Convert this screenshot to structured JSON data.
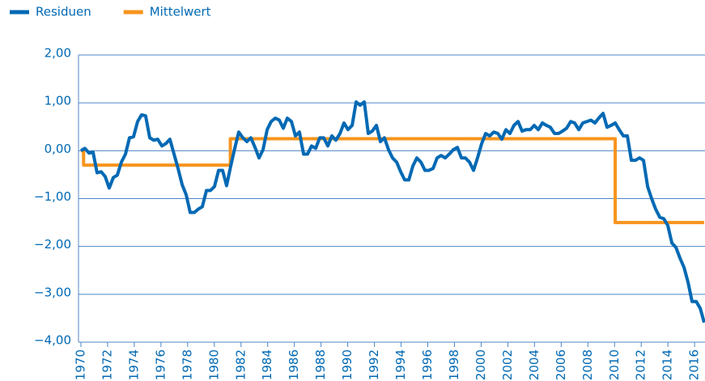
{
  "chart_data": {
    "type": "line",
    "xlim": [
      1969.82,
      2016.78
    ],
    "xticks": [
      1970,
      1972,
      1974,
      1976,
      1978,
      1980,
      1982,
      1984,
      1986,
      1988,
      1990,
      1992,
      1994,
      1996,
      1998,
      2000,
      2002,
      2004,
      2006,
      2008,
      2010,
      2012,
      2014,
      2016
    ],
    "ylim": [
      -4,
      2
    ],
    "yticks": [
      {
        "value": 2,
        "label": "2,00"
      },
      {
        "value": 1,
        "label": "1,00"
      },
      {
        "value": 0,
        "label": "0,00"
      },
      {
        "value": -1,
        "label": "−1,00"
      },
      {
        "value": -2,
        "label": "−2,00"
      },
      {
        "value": -3,
        "label": "−3,00"
      },
      {
        "value": -4,
        "label": "−4,00"
      }
    ],
    "grid": true,
    "legend": "top-left",
    "series": [
      {
        "name": "Residuen",
        "color": "#0069b4",
        "x": [
          1970.0,
          1970.3,
          1970.61,
          1970.91,
          1971.21,
          1971.52,
          1971.82,
          1972.12,
          1972.43,
          1972.73,
          1973.03,
          1973.34,
          1973.64,
          1973.94,
          1974.25,
          1974.55,
          1974.85,
          1975.16,
          1975.46,
          1975.76,
          1976.07,
          1976.37,
          1976.67,
          1976.98,
          1977.28,
          1977.59,
          1977.89,
          1978.19,
          1978.5,
          1978.8,
          1979.1,
          1979.41,
          1979.71,
          1980.01,
          1980.32,
          1980.62,
          1980.92,
          1981.23,
          1981.53,
          1981.83,
          1982.14,
          1982.44,
          1982.74,
          1983.05,
          1983.35,
          1983.65,
          1983.96,
          1984.26,
          1984.56,
          1984.87,
          1985.17,
          1985.47,
          1985.78,
          1986.08,
          1986.38,
          1986.69,
          1986.99,
          1987.29,
          1987.6,
          1987.9,
          1988.2,
          1988.51,
          1988.81,
          1989.11,
          1989.42,
          1989.72,
          1990.02,
          1990.33,
          1990.63,
          1990.93,
          1991.24,
          1991.54,
          1991.84,
          1992.15,
          1992.45,
          1992.75,
          1993.06,
          1993.36,
          1993.67,
          1993.97,
          1994.27,
          1994.58,
          1994.88,
          1995.18,
          1995.49,
          1995.79,
          1996.09,
          1996.4,
          1996.7,
          1997.0,
          1997.31,
          1997.61,
          1997.91,
          1998.22,
          1998.52,
          1998.82,
          1999.13,
          1999.43,
          1999.73,
          2000.04,
          2000.34,
          2000.64,
          2000.95,
          2001.25,
          2001.55,
          2001.86,
          2002.16,
          2002.46,
          2002.77,
          2003.07,
          2003.37,
          2003.68,
          2003.98,
          2004.28,
          2004.59,
          2004.89,
          2005.19,
          2005.5,
          2005.8,
          2006.1,
          2006.41,
          2006.71,
          2007.01,
          2007.32,
          2007.62,
          2007.93,
          2008.23,
          2008.53,
          2008.84,
          2009.14,
          2009.44,
          2009.75,
          2010.05,
          2010.35,
          2010.66,
          2010.96,
          2011.26,
          2011.57,
          2011.87,
          2012.17,
          2012.48,
          2012.78,
          2013.08,
          2013.39,
          2013.69,
          2013.99,
          2014.3,
          2014.6,
          2014.9,
          2015.21,
          2015.51,
          2015.81,
          2016.12,
          2016.42,
          2016.72
        ],
        "values": [
          0.0,
          0.05,
          -0.05,
          -0.03,
          -0.46,
          -0.44,
          -0.54,
          -0.78,
          -0.56,
          -0.51,
          -0.24,
          -0.07,
          0.27,
          0.29,
          0.61,
          0.75,
          0.73,
          0.27,
          0.22,
          0.24,
          0.1,
          0.15,
          0.24,
          -0.07,
          -0.37,
          -0.71,
          -0.92,
          -1.29,
          -1.29,
          -1.22,
          -1.17,
          -0.83,
          -0.83,
          -0.75,
          -0.41,
          -0.41,
          -0.73,
          -0.32,
          0.05,
          0.39,
          0.27,
          0.19,
          0.27,
          0.07,
          -0.15,
          0.02,
          0.44,
          0.61,
          0.68,
          0.64,
          0.47,
          0.68,
          0.61,
          0.31,
          0.39,
          -0.07,
          -0.07,
          0.1,
          0.05,
          0.27,
          0.27,
          0.1,
          0.31,
          0.22,
          0.36,
          0.58,
          0.44,
          0.53,
          1.02,
          0.95,
          1.02,
          0.36,
          0.41,
          0.53,
          0.19,
          0.27,
          0.02,
          -0.15,
          -0.24,
          -0.44,
          -0.61,
          -0.61,
          -0.32,
          -0.15,
          -0.24,
          -0.41,
          -0.41,
          -0.37,
          -0.15,
          -0.1,
          -0.15,
          -0.07,
          0.02,
          0.07,
          -0.15,
          -0.15,
          -0.24,
          -0.41,
          -0.15,
          0.15,
          0.36,
          0.31,
          0.39,
          0.36,
          0.24,
          0.44,
          0.36,
          0.53,
          0.61,
          0.41,
          0.44,
          0.44,
          0.53,
          0.44,
          0.58,
          0.53,
          0.49,
          0.36,
          0.36,
          0.41,
          0.47,
          0.61,
          0.58,
          0.44,
          0.58,
          0.61,
          0.64,
          0.58,
          0.69,
          0.78,
          0.49,
          0.53,
          0.58,
          0.44,
          0.31,
          0.31,
          -0.2,
          -0.2,
          -0.15,
          -0.2,
          -0.75,
          -1.0,
          -1.22,
          -1.39,
          -1.42,
          -1.56,
          -1.93,
          -2.02,
          -2.24,
          -2.44,
          -2.75,
          -3.15,
          -3.15,
          -3.29,
          -3.59
        ]
      },
      {
        "name": "Mittelwert",
        "color": "#f7941d",
        "x": [
          1970.0,
          1970.2,
          1970.2,
          1981.2,
          1981.2,
          2010.05,
          2010.05,
          2016.72
        ],
        "values": [
          0,
          0,
          -0.3,
          -0.3,
          0.25,
          0.25,
          -1.5,
          -1.5
        ]
      }
    ]
  }
}
